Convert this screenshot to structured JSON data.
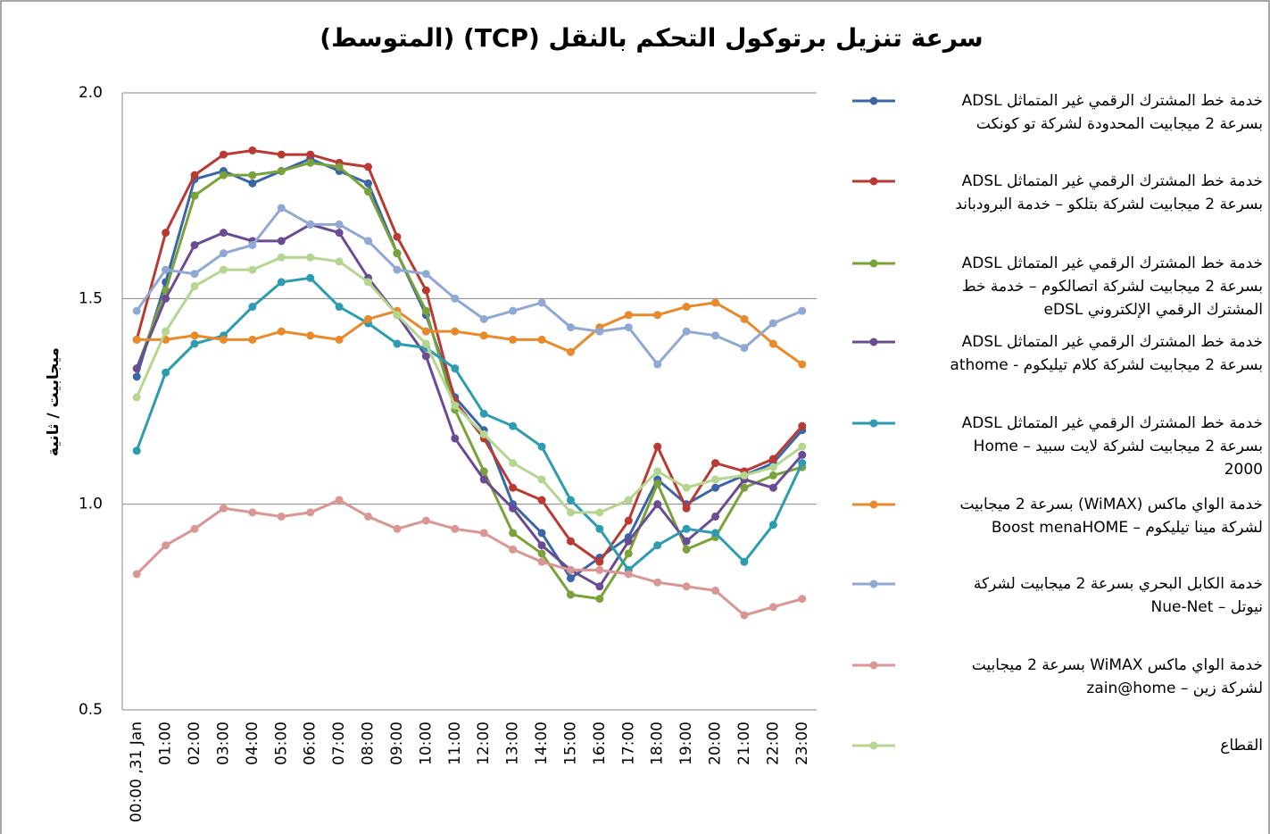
{
  "chart_data": {
    "type": "line",
    "title": "سرعة تنزيل برتوكول التحكم بالنقل (TCP) (المتوسط)",
    "y_label": "ميجابيت / ثانية",
    "categories": [
      "00:00 ,31 Jan",
      "01:00",
      "02:00",
      "03:00",
      "04:00",
      "05:00",
      "06:00",
      "07:00",
      "08:00",
      "09:00",
      "10:00",
      "11:00",
      "12:00",
      "13:00",
      "14:00",
      "15:00",
      "16:00",
      "17:00",
      "18:00",
      "19:00",
      "20:00",
      "21:00",
      "22:00",
      "23:00"
    ],
    "ylim": [
      0.5,
      2.0
    ],
    "yticks": [
      0.5,
      {
        "value": 1.0,
        "label": "1.0"
      },
      1.5,
      {
        "value": 2.0,
        "label": "2.0"
      }
    ],
    "grid": true,
    "legend": "right",
    "series": [
      {
        "name": "خدمة خط المشترك الرقمي غير المتماثل ADSL\nبسرعة 2 ميجابيت المحدودة لشركة تو كونكت",
        "color": "#3a66a7",
        "values": [
          1.31,
          1.54,
          1.79,
          1.81,
          1.78,
          1.81,
          1.84,
          1.81,
          1.78,
          1.61,
          1.46,
          1.26,
          1.18,
          1.0,
          0.93,
          0.82,
          0.87,
          0.92,
          1.06,
          1.0,
          1.04,
          1.07,
          1.1,
          1.18
        ]
      },
      {
        "name": "خدمة خط المشترك الرقمي غير المتماثل ADSL\nبسرعة 2 ميجابيت لشركة بتلكو – خدمة البرودباند",
        "color": "#b83a33",
        "values": [
          1.4,
          1.66,
          1.8,
          1.85,
          1.86,
          1.85,
          1.85,
          1.83,
          1.82,
          1.65,
          1.52,
          1.25,
          1.16,
          1.04,
          1.01,
          0.91,
          0.86,
          0.96,
          1.14,
          0.99,
          1.1,
          1.08,
          1.11,
          1.19
        ]
      },
      {
        "name": "خدمة خط المشترك الرقمي غير المتماثل ADSL\nبسرعة 2 ميجابيت لشركة اتصالكوم – خدمة خط\nالمشترك الرقمي الإلكتروني eDSL",
        "color": "#7aa23a",
        "values": [
          1.33,
          1.52,
          1.75,
          1.8,
          1.8,
          1.81,
          1.83,
          1.82,
          1.76,
          1.61,
          1.47,
          1.23,
          1.08,
          0.93,
          0.88,
          0.78,
          0.77,
          0.88,
          1.05,
          0.89,
          0.92,
          1.04,
          1.07,
          1.09
        ]
      },
      {
        "name": "خدمة خط المشترك الرقمي غير المتماثل ADSL\nبسرعة 2 ميجابيت لشركة كلام تيليكوم - athome",
        "color": "#6a4c93",
        "values": [
          1.33,
          1.5,
          1.63,
          1.66,
          1.64,
          1.64,
          1.68,
          1.66,
          1.55,
          1.46,
          1.36,
          1.16,
          1.06,
          0.99,
          0.9,
          0.84,
          0.8,
          0.91,
          1.0,
          0.91,
          0.97,
          1.06,
          1.04,
          1.12
        ]
      },
      {
        "name": "خدمة خط المشترك الرقمي غير المتماثل ADSL\nبسرعة 2 ميجابيت لشركة لايت سبيد – Home\n2000",
        "color": "#2d9bb0",
        "values": [
          1.13,
          1.32,
          1.39,
          1.41,
          1.48,
          1.54,
          1.55,
          1.48,
          1.44,
          1.39,
          1.38,
          1.33,
          1.22,
          1.19,
          1.14,
          1.01,
          0.94,
          0.84,
          0.9,
          0.94,
          0.93,
          0.86,
          0.95,
          1.1
        ]
      },
      {
        "name": "خدمة الواي ماكس (WiMAX) بسرعة 2 ميجابيت\nلشركة مينا تيليكوم – Boost menaHOME",
        "color": "#e8892b",
        "values": [
          1.4,
          1.4,
          1.41,
          1.4,
          1.4,
          1.42,
          1.41,
          1.4,
          1.45,
          1.47,
          1.42,
          1.42,
          1.41,
          1.4,
          1.4,
          1.37,
          1.43,
          1.46,
          1.46,
          1.48,
          1.49,
          1.45,
          1.39,
          1.34
        ]
      },
      {
        "name": "خدمة الكابل البحري بسرعة 2 ميجابيت لشركة\nنيوتل – Nue-Net",
        "color": "#8fa8d4",
        "values": [
          1.47,
          1.57,
          1.56,
          1.61,
          1.63,
          1.72,
          1.68,
          1.68,
          1.64,
          1.57,
          1.56,
          1.5,
          1.45,
          1.47,
          1.49,
          1.43,
          1.42,
          1.43,
          1.34,
          1.42,
          1.41,
          1.38,
          1.44,
          1.47
        ]
      },
      {
        "name": "خدمة الواي ماكس WiMAX بسرعة 2 ميجابيت\nلشركة زين – zain@home",
        "color": "#d99694",
        "values": [
          0.83,
          0.9,
          0.94,
          0.99,
          0.98,
          0.97,
          0.98,
          1.01,
          0.97,
          0.94,
          0.96,
          0.94,
          0.93,
          0.89,
          0.86,
          0.84,
          0.84,
          0.83,
          0.81,
          0.8,
          0.79,
          0.73,
          0.75,
          0.77
        ]
      },
      {
        "name": "القطاع",
        "color": "#b5d68f",
        "values": [
          1.26,
          1.42,
          1.53,
          1.57,
          1.57,
          1.6,
          1.6,
          1.59,
          1.54,
          1.46,
          1.39,
          1.24,
          1.17,
          1.1,
          1.06,
          0.98,
          0.98,
          1.01,
          1.08,
          1.04,
          1.06,
          1.07,
          1.09,
          1.14
        ]
      }
    ]
  }
}
